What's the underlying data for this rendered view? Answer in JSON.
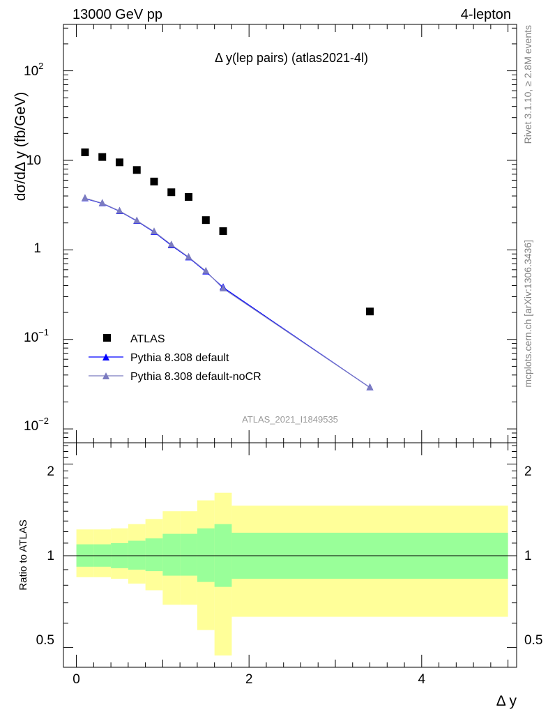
{
  "header": {
    "left": "13000 GeV pp",
    "right": "4-lepton"
  },
  "side_labels": {
    "rivet": "Rivet 3.1.10, ≥ 2.8M events",
    "mcplots": "mcplots.cern.ch [arXiv:1306.3436]"
  },
  "colors": {
    "atlas": "#000000",
    "pythia_default": "#0000ff",
    "pythia_nocr": "#7b7bc0",
    "band_outer": "#ffff99",
    "band_inner": "#99ff99"
  },
  "chart_data": [
    {
      "type": "scatter",
      "title": "Δ y(lep pairs) (atlas2021-4l)",
      "ylabel": "dσ/dΔ y (fb/GeV)",
      "xlabel": "Δ y",
      "yscale": "log",
      "ylim": [
        0.007,
        330
      ],
      "xlim": [
        -0.15,
        5.1
      ],
      "y_tick_labels": [
        "10^-2",
        "10^-1",
        "1",
        "10",
        "10^2"
      ],
      "watermark": "ATLAS_2021_I1849535",
      "legend": [
        "ATLAS",
        "Pythia 8.308 default",
        "Pythia 8.308 default-noCR"
      ],
      "legend_position": "bottom-left",
      "series": [
        {
          "name": "ATLAS",
          "marker": "square",
          "x": [
            0.1,
            0.3,
            0.5,
            0.7,
            0.9,
            1.1,
            1.3,
            1.5,
            1.7,
            3.4
          ],
          "y": [
            12.3,
            10.9,
            9.5,
            7.8,
            5.8,
            4.4,
            3.9,
            2.15,
            1.62,
            0.205
          ]
        },
        {
          "name": "Pythia 8.308 default",
          "marker": "triangle",
          "x": [
            0.1,
            0.3,
            0.5,
            0.7,
            0.9,
            1.1,
            1.3,
            1.5,
            1.7,
            3.4
          ],
          "y": [
            3.75,
            3.3,
            2.7,
            2.1,
            1.58,
            1.12,
            0.82,
            0.57,
            0.38,
            0.029
          ]
        },
        {
          "name": "Pythia 8.308 default-noCR",
          "marker": "triangle",
          "x": [
            0.1,
            0.3,
            0.5,
            0.7,
            0.9,
            1.1,
            1.3,
            1.5,
            1.7,
            3.4
          ],
          "y": [
            3.78,
            3.32,
            2.72,
            2.12,
            1.6,
            1.14,
            0.83,
            0.58,
            0.37,
            0.029
          ]
        }
      ]
    },
    {
      "type": "area",
      "title": "",
      "ylabel": "Ratio to ATLAS",
      "xlabel": "Δ y",
      "yscale": "log",
      "ylim": [
        0.43,
        2.35
      ],
      "xlim": [
        -0.15,
        5.1
      ],
      "y_ticks": [
        0.5,
        1,
        2
      ],
      "x_ticks": [
        0,
        2,
        4
      ],
      "y_tick_labels": [
        "0.5",
        "1",
        "2"
      ],
      "x_tick_labels": [
        "0",
        "2",
        "4"
      ],
      "bin_edges": [
        0.0,
        0.2,
        0.4,
        0.6,
        0.8,
        1.0,
        1.2,
        1.4,
        1.6,
        1.8,
        5.0
      ],
      "outer_band_low": [
        0.85,
        0.85,
        0.84,
        0.81,
        0.77,
        0.69,
        0.69,
        0.57,
        0.47,
        0.63
      ],
      "outer_band_high": [
        1.22,
        1.22,
        1.23,
        1.27,
        1.32,
        1.4,
        1.4,
        1.52,
        1.61,
        1.46
      ],
      "inner_band_low": [
        0.92,
        0.92,
        0.91,
        0.9,
        0.89,
        0.86,
        0.86,
        0.82,
        0.79,
        0.84
      ],
      "inner_band_high": [
        1.09,
        1.09,
        1.1,
        1.12,
        1.14,
        1.18,
        1.18,
        1.23,
        1.27,
        1.19
      ],
      "reference_line": 1
    }
  ]
}
